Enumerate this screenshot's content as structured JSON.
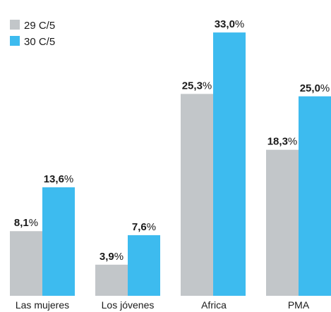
{
  "chart_data": {
    "type": "bar",
    "title": "",
    "xlabel": "",
    "ylabel": "",
    "ylim": [
      0,
      35
    ],
    "grid": false,
    "legend_position": "top-left",
    "categories": [
      "Las mujeres",
      "Los jóvenes",
      "Africa",
      "PMA"
    ],
    "series": [
      {
        "name": "29 C/5",
        "color": "#c2c6c9",
        "values": [
          8.1,
          3.9,
          25.3,
          18.3
        ],
        "labels": [
          "8,1",
          "3,9",
          "25,3",
          "18,3"
        ]
      },
      {
        "name": "30 C/5",
        "color": "#3dbbef",
        "values": [
          13.6,
          7.6,
          33.0,
          25.0
        ],
        "labels": [
          "13,6",
          "7,6",
          "33,0",
          "25,0"
        ]
      }
    ],
    "value_suffix": "%"
  }
}
